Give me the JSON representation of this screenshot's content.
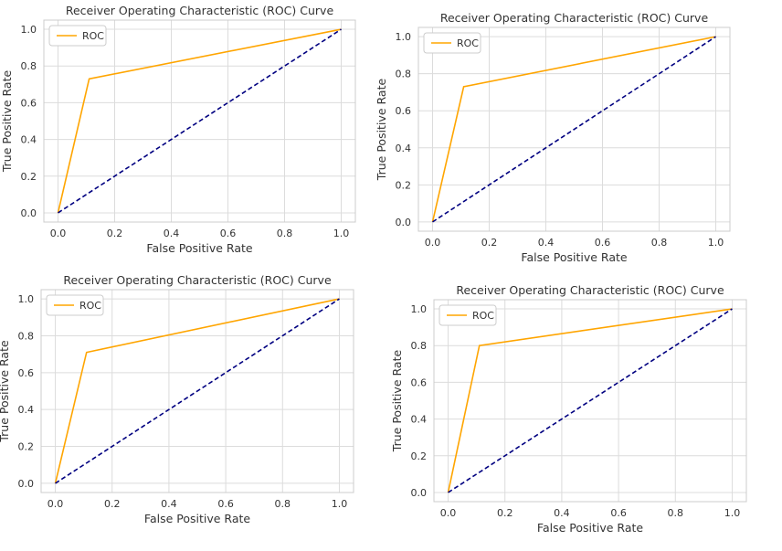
{
  "colors": {
    "roc": "#ffa500",
    "diagonal": "#000080",
    "grid": "#dcdcdc",
    "frame": "#cccccc",
    "text": "#333333"
  },
  "chart_data": [
    {
      "type": "line",
      "title": "Receiver Operating Characteristic (ROC) Curve",
      "xlabel": "False Positive Rate",
      "ylabel": "True Positive Rate",
      "xlim": [
        -0.05,
        1.05
      ],
      "ylim": [
        -0.05,
        1.05
      ],
      "xticks": [
        "0.0",
        "0.2",
        "0.4",
        "0.6",
        "0.8",
        "1.0"
      ],
      "yticks": [
        "0.0",
        "0.2",
        "0.4",
        "0.6",
        "0.8",
        "1.0"
      ],
      "grid": true,
      "legend": {
        "position": "upper-left",
        "entries": [
          "ROC"
        ]
      },
      "series": [
        {
          "name": "ROC",
          "style": "solid",
          "x": [
            0.0,
            0.11,
            1.0
          ],
          "y": [
            0.0,
            0.73,
            1.0
          ]
        },
        {
          "style": "dashed",
          "x": [
            0.0,
            1.0
          ],
          "y": [
            0.0,
            1.0
          ]
        }
      ]
    },
    {
      "type": "line",
      "title": "Receiver Operating Characteristic (ROC) Curve",
      "xlabel": "False Positive Rate",
      "ylabel": "True Positive Rate",
      "xlim": [
        -0.05,
        1.05
      ],
      "ylim": [
        -0.05,
        1.05
      ],
      "xticks": [
        "0.0",
        "0.2",
        "0.4",
        "0.6",
        "0.8",
        "1.0"
      ],
      "yticks": [
        "0.0",
        "0.2",
        "0.4",
        "0.6",
        "0.8",
        "1.0"
      ],
      "grid": true,
      "legend": {
        "position": "upper-left",
        "entries": [
          "ROC"
        ]
      },
      "series": [
        {
          "name": "ROC",
          "style": "solid",
          "x": [
            0.0,
            0.11,
            1.0
          ],
          "y": [
            0.0,
            0.73,
            1.0
          ]
        },
        {
          "style": "dashed",
          "x": [
            0.0,
            1.0
          ],
          "y": [
            0.0,
            1.0
          ]
        }
      ]
    },
    {
      "type": "line",
      "title": "Receiver Operating Characteristic (ROC) Curve",
      "xlabel": "False Positive Rate",
      "ylabel": "True Positive Rate",
      "xlim": [
        -0.05,
        1.05
      ],
      "ylim": [
        -0.05,
        1.05
      ],
      "xticks": [
        "0.0",
        "0.2",
        "0.4",
        "0.6",
        "0.8",
        "1.0"
      ],
      "yticks": [
        "0.0",
        "0.2",
        "0.4",
        "0.6",
        "0.8",
        "1.0"
      ],
      "grid": true,
      "legend": {
        "position": "upper-left",
        "entries": [
          "ROC"
        ]
      },
      "series": [
        {
          "name": "ROC",
          "style": "solid",
          "x": [
            0.0,
            0.11,
            1.0
          ],
          "y": [
            0.0,
            0.71,
            1.0
          ]
        },
        {
          "style": "dashed",
          "x": [
            0.0,
            1.0
          ],
          "y": [
            0.0,
            1.0
          ]
        }
      ]
    },
    {
      "type": "line",
      "title": "Receiver Operating Characteristic (ROC) Curve",
      "xlabel": "False Positive Rate",
      "ylabel": "True Positive Rate",
      "xlim": [
        -0.05,
        1.05
      ],
      "ylim": [
        -0.05,
        1.05
      ],
      "xticks": [
        "0.0",
        "0.2",
        "0.4",
        "0.6",
        "0.8",
        "1.0"
      ],
      "yticks": [
        "0.0",
        "0.2",
        "0.4",
        "0.6",
        "0.8",
        "1.0"
      ],
      "grid": true,
      "legend": {
        "position": "upper-left",
        "entries": [
          "ROC"
        ]
      },
      "series": [
        {
          "name": "ROC",
          "style": "solid",
          "x": [
            0.0,
            0.11,
            1.0
          ],
          "y": [
            0.0,
            0.8,
            1.0
          ]
        },
        {
          "style": "dashed",
          "x": [
            0.0,
            1.0
          ],
          "y": [
            0.0,
            1.0
          ]
        }
      ]
    }
  ]
}
